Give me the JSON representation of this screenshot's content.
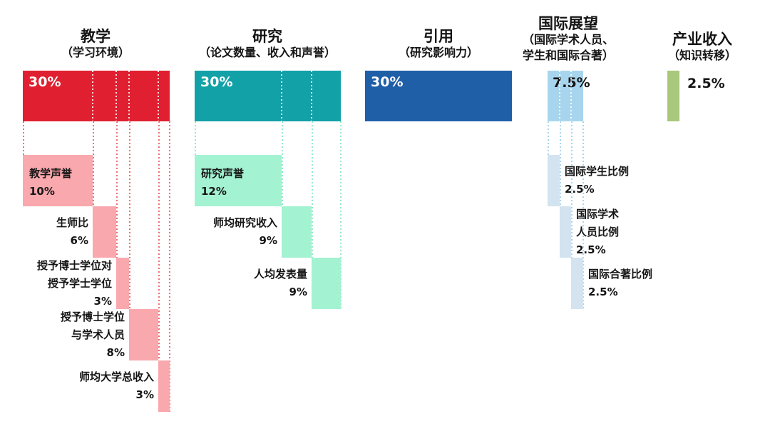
{
  "chart_data": {
    "type": "bar",
    "subtype": "weighted-breakdown-columns",
    "unit": "%",
    "legend": false,
    "categories": [
      {
        "name": "教学",
        "subtitle_lines": [
          "（学习环境）"
        ],
        "weight": 30,
        "weight_label": "30%",
        "weight_label_style": "light-on-dark",
        "colors": {
          "main": "#e02030",
          "sub": "#f9a8ad",
          "dots": "#ee7077"
        },
        "components": [
          {
            "label_lines": [
              "教学声誉"
            ],
            "value": 10,
            "value_label": "10%",
            "label_placement": "inside"
          },
          {
            "label_lines": [
              "生师比"
            ],
            "value": 6,
            "value_label": "6%",
            "label_placement": "left"
          },
          {
            "label_lines": [
              "授予博士学位对",
              "授予学士学位"
            ],
            "value": 3,
            "value_label": "3%",
            "label_placement": "left"
          },
          {
            "label_lines": [
              "授予博士学位",
              "与学术人员"
            ],
            "value": 8,
            "value_label": "8%",
            "label_placement": "left"
          },
          {
            "label_lines": [
              "师均大学总收入"
            ],
            "value": 3,
            "value_label": "3%",
            "label_placement": "left"
          }
        ]
      },
      {
        "name": "研究",
        "subtitle_lines": [
          "（论文数量、收入和声誉）"
        ],
        "weight": 30,
        "weight_label": "30%",
        "weight_label_style": "light-on-dark",
        "colors": {
          "main": "#12a1a7",
          "sub": "#a3f2d2",
          "dots": "#96e9c9"
        },
        "components": [
          {
            "label_lines": [
              "研究声誉"
            ],
            "value": 12,
            "value_label": "12%",
            "label_placement": "inside"
          },
          {
            "label_lines": [
              "师均研究收入"
            ],
            "value": 9,
            "value_label": "9%",
            "label_placement": "left"
          },
          {
            "label_lines": [
              "人均发表量"
            ],
            "value": 9,
            "value_label": "9%",
            "label_placement": "left"
          }
        ]
      },
      {
        "name": "引用",
        "subtitle_lines": [
          "（研究影响力）"
        ],
        "weight": 30,
        "weight_label": "30%",
        "weight_label_style": "light-on-dark",
        "colors": {
          "main": "#1f5fa8",
          "sub": "#1f5fa8",
          "dots": "#1f5fa8"
        },
        "components": []
      },
      {
        "name": "国际展望",
        "subtitle_lines": [
          "（国际学术人员、",
          "学生和国际合著）"
        ],
        "weight": 7.5,
        "weight_label": "7.5%",
        "weight_label_style": "dark-on-light",
        "colors": {
          "main": "#a8d5ee",
          "sub": "#d3e3f0",
          "dots": "#a9d4ec"
        },
        "components": [
          {
            "label_lines": [
              "国际学生比例"
            ],
            "value": 2.5,
            "value_label": "2.5%",
            "label_placement": "right"
          },
          {
            "label_lines": [
              "国际学术",
              "人员比例"
            ],
            "value": 2.5,
            "value_label": "2.5%",
            "label_placement": "right"
          },
          {
            "label_lines": [
              "国际合著比例"
            ],
            "value": 2.5,
            "value_label": "2.5%",
            "label_placement": "right"
          }
        ]
      },
      {
        "name": "产业收入",
        "subtitle_lines": [
          "（知识转移）"
        ],
        "weight": 2.5,
        "weight_label": "2.5%",
        "weight_label_style": "dark-outside",
        "colors": {
          "main": "#a8c87c",
          "sub": "#a8c87c",
          "dots": "#a8c87c"
        },
        "components": []
      }
    ]
  }
}
